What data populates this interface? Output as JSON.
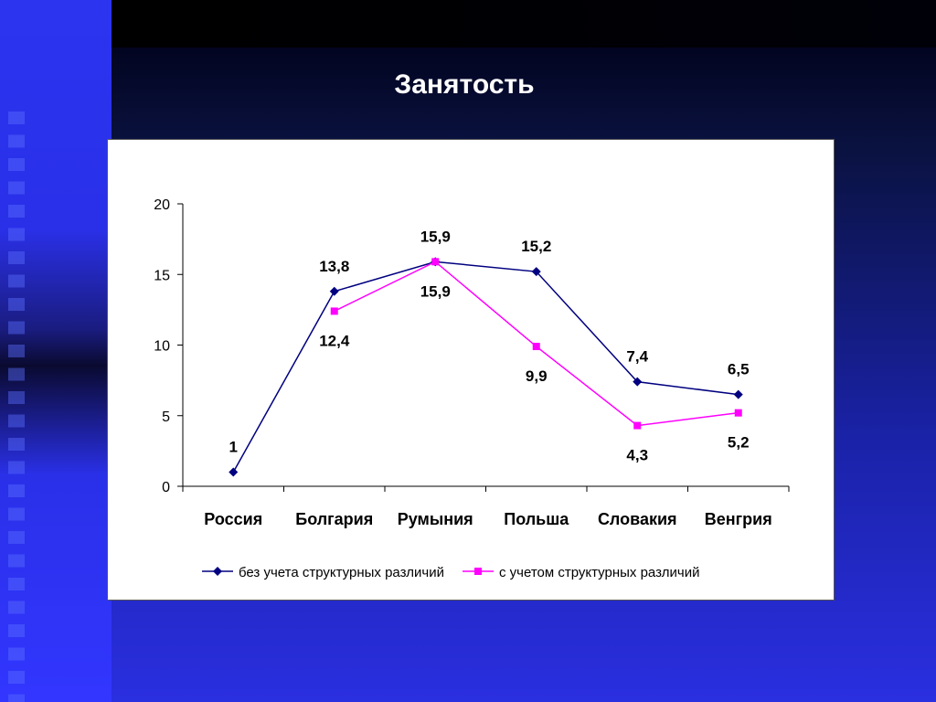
{
  "slide": {
    "title": "Занятость"
  },
  "chart_data": {
    "type": "line",
    "title": "",
    "xlabel": "",
    "ylabel": "",
    "categories": [
      "Россия",
      "Болгария",
      "Румыния",
      "Польша",
      "Словакия",
      "Венгрия"
    ],
    "ylim": [
      0,
      20
    ],
    "yticks": [
      0,
      5,
      10,
      15,
      20
    ],
    "grid": false,
    "legend_position": "bottom",
    "series": [
      {
        "name": "без учета структурных различий",
        "values": [
          1,
          13.8,
          15.9,
          15.2,
          7.4,
          6.5
        ],
        "labels": [
          "1",
          "13,8",
          "15,9",
          "15,2",
          "7,4",
          "6,5"
        ],
        "label_position": "above",
        "color": "#000080",
        "marker": "diamond"
      },
      {
        "name": "с учетом структурных различий",
        "values": [
          null,
          12.4,
          15.9,
          9.9,
          4.3,
          5.2
        ],
        "labels": [
          null,
          "12,4",
          "15,9",
          "9,9",
          "4,3",
          "5,2"
        ],
        "label_position": "below",
        "color": "#ff00ff",
        "marker": "square"
      }
    ]
  }
}
